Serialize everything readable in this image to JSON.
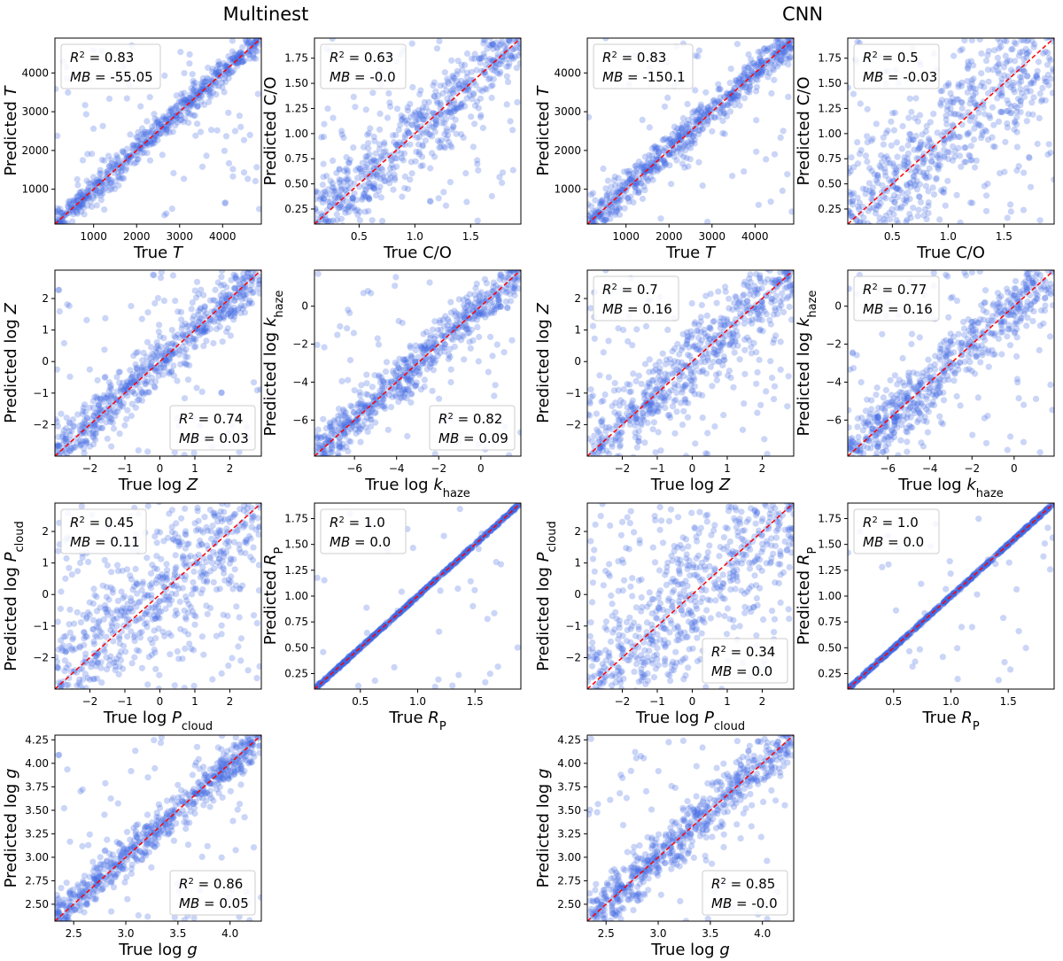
{
  "headings": {
    "left": "Multinest",
    "right": "CNN"
  },
  "colors": {
    "points": "#4169e1",
    "identity_line": "#ff0000",
    "axes": "#000000",
    "legend_border": "#cccccc"
  },
  "chart_data": [
    {
      "type": "scatter",
      "method": "Multinest",
      "param": "T",
      "xlabel": "True T",
      "ylabel": "Predicted T",
      "lim": [
        100,
        4900
      ],
      "xticks": [
        1000,
        2000,
        3000,
        4000
      ],
      "yticks": [
        1000,
        2000,
        3000,
        4000
      ],
      "r2": "0.83",
      "mb": "-55.05",
      "legend": "upper-left",
      "scatter_level": 0.12,
      "identity_line": true
    },
    {
      "type": "scatter",
      "method": "Multinest",
      "param": "C/O",
      "xlabel": "True C/O",
      "ylabel": "Predicted C/O",
      "lim": [
        0.1,
        1.95
      ],
      "xticks": [
        0.5,
        1.0,
        1.5
      ],
      "yticks": [
        0.25,
        0.5,
        0.75,
        1.0,
        1.25,
        1.5,
        1.75
      ],
      "r2": "0.63",
      "mb": "-0.0",
      "legend": "upper-left",
      "scatter_level": 0.3,
      "identity_line": true
    },
    {
      "type": "scatter",
      "method": "CNN",
      "param": "T",
      "xlabel": "True T",
      "ylabel": "Predicted T",
      "lim": [
        100,
        4900
      ],
      "xticks": [
        1000,
        2000,
        3000,
        4000
      ],
      "yticks": [
        1000,
        2000,
        3000,
        4000
      ],
      "r2": "0.83",
      "mb": "-150.1",
      "legend": "upper-left",
      "scatter_level": 0.14,
      "identity_line": true
    },
    {
      "type": "scatter",
      "method": "CNN",
      "param": "C/O",
      "xlabel": "True C/O",
      "ylabel": "Predicted C/O",
      "lim": [
        0.1,
        1.95
      ],
      "xticks": [
        0.5,
        1.0,
        1.5
      ],
      "yticks": [
        0.25,
        0.5,
        0.75,
        1.0,
        1.25,
        1.5,
        1.75
      ],
      "r2": "0.5",
      "mb": "-0.03",
      "legend": "upper-left",
      "scatter_level": 0.45,
      "identity_line": true
    },
    {
      "type": "scatter",
      "method": "Multinest",
      "param": "log Z",
      "xlabel": "True log Z",
      "ylabel": "Predicted log Z",
      "lim": [
        -3,
        2.9
      ],
      "xticks": [
        -2,
        -1,
        0,
        1,
        2
      ],
      "yticks": [
        -2,
        -1,
        0,
        1,
        2
      ],
      "r2": "0.74",
      "mb": "0.03",
      "legend": "lower-right",
      "scatter_level": 0.2,
      "identity_line": true
    },
    {
      "type": "scatter",
      "method": "Multinest",
      "param": "log k_haze",
      "xlabel": "True log k_haze",
      "ylabel": "Predicted log k_haze",
      "lim": [
        -7.9,
        1.9
      ],
      "xticks": [
        -6,
        -4,
        -2,
        0
      ],
      "yticks": [
        -6,
        -4,
        -2,
        0
      ],
      "r2": "0.82",
      "mb": "0.09",
      "legend": "lower-right",
      "scatter_level": 0.18,
      "identity_line": true
    },
    {
      "type": "scatter",
      "method": "CNN",
      "param": "log Z",
      "xlabel": "True log Z",
      "ylabel": "Predicted log Z",
      "lim": [
        -3,
        2.9
      ],
      "xticks": [
        -2,
        -1,
        0,
        1,
        2
      ],
      "yticks": [
        -2,
        -1,
        0,
        1,
        2
      ],
      "r2": "0.7",
      "mb": "0.16",
      "legend": "upper-left",
      "scatter_level": 0.3,
      "identity_line": true
    },
    {
      "type": "scatter",
      "method": "CNN",
      "param": "log k_haze",
      "xlabel": "True log k_haze",
      "ylabel": "Predicted log k_haze",
      "lim": [
        -7.9,
        1.9
      ],
      "xticks": [
        -6,
        -4,
        -2,
        0
      ],
      "yticks": [
        -6,
        -4,
        -2,
        0
      ],
      "r2": "0.77",
      "mb": "0.16",
      "legend": "upper-left",
      "scatter_level": 0.25,
      "identity_line": true
    },
    {
      "type": "scatter",
      "method": "Multinest",
      "param": "log P_cloud",
      "xlabel": "True log P_cloud",
      "ylabel": "Predicted log P_cloud",
      "lim": [
        -3,
        2.9
      ],
      "xticks": [
        -2,
        -1,
        0,
        1,
        2
      ],
      "yticks": [
        -2,
        -1,
        0,
        1,
        2
      ],
      "r2": "0.45",
      "mb": "0.11",
      "legend": "upper-left",
      "scatter_level": 0.5,
      "identity_line": true
    },
    {
      "type": "scatter",
      "method": "Multinest",
      "param": "R_P",
      "xlabel": "True R_P",
      "ylabel": "Predicted R_P",
      "lim": [
        0.1,
        1.9
      ],
      "xticks": [
        0.5,
        1.0,
        1.5
      ],
      "yticks": [
        0.25,
        0.5,
        0.75,
        1.0,
        1.25,
        1.5,
        1.75
      ],
      "r2": "1.0",
      "mb": "0.0",
      "legend": "upper-left",
      "scatter_level": 0.01,
      "identity_line": true
    },
    {
      "type": "scatter",
      "method": "CNN",
      "param": "log P_cloud",
      "xlabel": "True log P_cloud",
      "ylabel": "Predicted log P_cloud",
      "lim": [
        -3,
        2.9
      ],
      "xticks": [
        -2,
        -1,
        0,
        1,
        2
      ],
      "yticks": [
        -2,
        -1,
        0,
        1,
        2
      ],
      "r2": "0.34",
      "mb": "0.0",
      "legend": "lower-right",
      "scatter_level": 0.55,
      "identity_line": true
    },
    {
      "type": "scatter",
      "method": "CNN",
      "param": "R_P",
      "xlabel": "True R_P",
      "ylabel": "Predicted R_P",
      "lim": [
        0.1,
        1.9
      ],
      "xticks": [
        0.5,
        1.0,
        1.5
      ],
      "yticks": [
        0.25,
        0.5,
        0.75,
        1.0,
        1.25,
        1.5,
        1.75
      ],
      "r2": "1.0",
      "mb": "0.0",
      "legend": "upper-left",
      "scatter_level": 0.01,
      "identity_line": true
    },
    {
      "type": "scatter",
      "method": "Multinest",
      "param": "log g",
      "xlabel": "True log g",
      "ylabel": "Predicted log g",
      "lim": [
        2.32,
        4.3
      ],
      "xticks": [
        2.5,
        3.0,
        3.5,
        4.0
      ],
      "yticks": [
        2.5,
        2.75,
        3.0,
        3.25,
        3.5,
        3.75,
        4.0,
        4.25
      ],
      "r2": "0.86",
      "mb": "0.05",
      "legend": "lower-right",
      "scatter_level": 0.15,
      "identity_line": true
    },
    {
      "type": "scatter",
      "method": "CNN",
      "param": "log g",
      "xlabel": "True log g",
      "ylabel": "Predicted log g",
      "lim": [
        2.32,
        4.3
      ],
      "xticks": [
        2.5,
        3.0,
        3.5,
        4.0
      ],
      "yticks": [
        2.5,
        2.75,
        3.0,
        3.25,
        3.5,
        3.75,
        4.0,
        4.25
      ],
      "r2": "0.85",
      "mb": "-0.0",
      "legend": "lower-right",
      "scatter_level": 0.2,
      "identity_line": true
    }
  ]
}
